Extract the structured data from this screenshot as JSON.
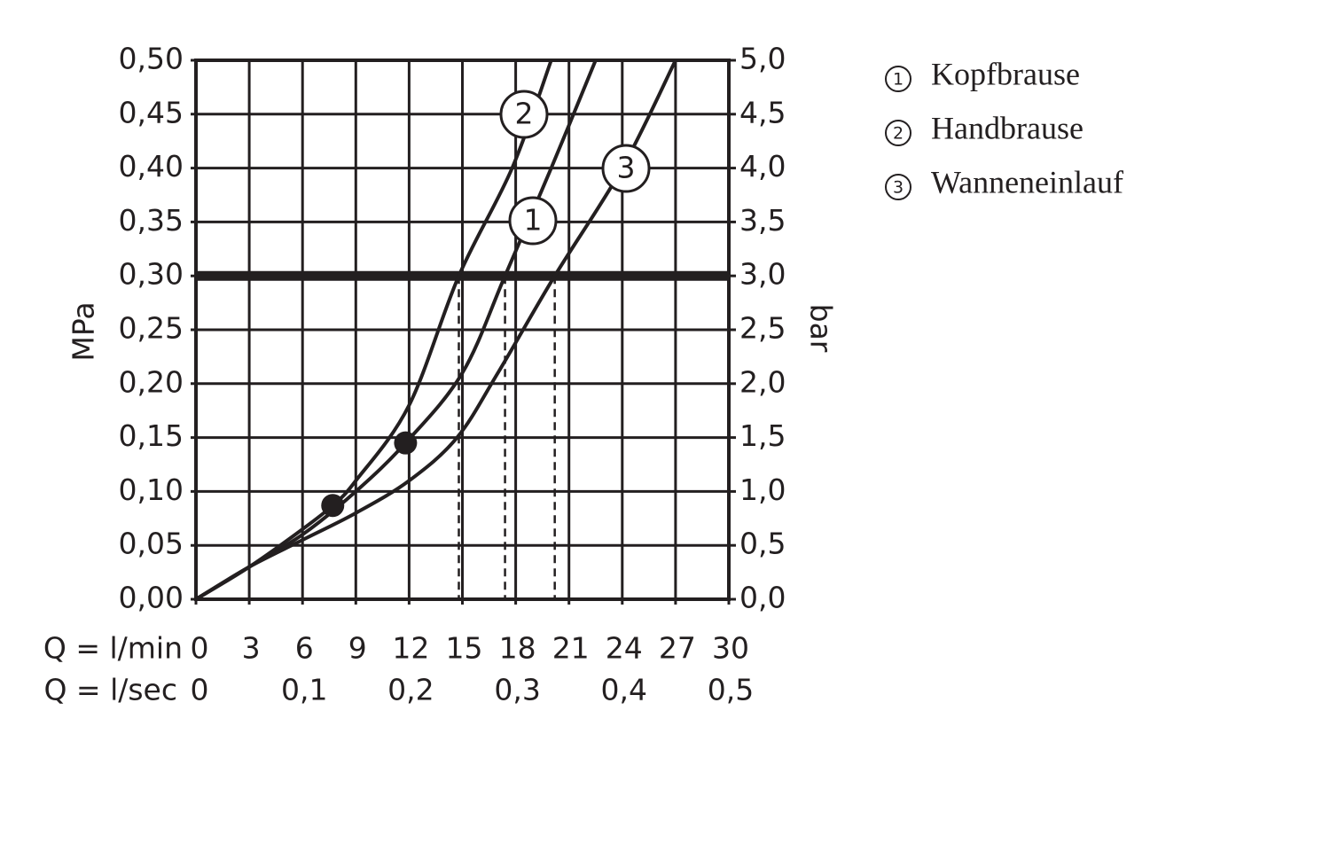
{
  "chart_data": {
    "type": "line",
    "ylabel": "MPa",
    "y2label": "bar",
    "xlabel": "Q = l/min",
    "x2label": "Q = l/sec",
    "xlim": [
      0,
      30
    ],
    "xticks": [
      0,
      3,
      6,
      9,
      12,
      15,
      18,
      21,
      24,
      27,
      30
    ],
    "x2lim": [
      0,
      0.5
    ],
    "x2ticks": [
      0,
      {
        "value": 0.1,
        "label": "0,1"
      },
      {
        "value": 0.2,
        "label": "0,2"
      },
      {
        "value": 0.3,
        "label": "0,3"
      },
      {
        "value": 0.4,
        "label": "0,4"
      },
      {
        "value": 0.5,
        "label": "0,5"
      }
    ],
    "ylim": [
      0,
      0.5
    ],
    "yticks": [
      {
        "value": 0,
        "label": "0,00"
      },
      {
        "value": 0.05,
        "label": "0,05"
      },
      {
        "value": 0.1,
        "label": "0,10"
      },
      {
        "value": 0.15,
        "label": "0,15"
      },
      {
        "value": 0.2,
        "label": "0,20"
      },
      {
        "value": 0.25,
        "label": "0,25"
      },
      {
        "value": 0.3,
        "label": "0,30"
      },
      {
        "value": 0.35,
        "label": "0,35"
      },
      {
        "value": 0.4,
        "label": "0,40"
      },
      {
        "value": 0.45,
        "label": "0,45"
      },
      {
        "value": 0.5,
        "label": "0,50"
      }
    ],
    "y2lim": [
      0,
      5
    ],
    "y2ticks": [
      {
        "value": 0,
        "label": "0,0"
      },
      {
        "value": 0.5,
        "label": "0,5"
      },
      {
        "value": 1,
        "label": "1,0"
      },
      {
        "value": 1.5,
        "label": "1,5"
      },
      {
        "value": 2,
        "label": "2,0"
      },
      {
        "value": 2.5,
        "label": "2,5"
      },
      {
        "value": 3,
        "label": "3,0"
      },
      {
        "value": 3.5,
        "label": "3,5"
      },
      {
        "value": 4,
        "label": "4,0"
      },
      {
        "value": 4.5,
        "label": "4,5"
      },
      {
        "value": 5,
        "label": "5,0"
      }
    ],
    "grid": true,
    "reference_y": 0.3,
    "drop_lines_x": [
      14.8,
      17.4,
      20.2
    ],
    "points": {
      "x": [
        7.7,
        11.8
      ],
      "y": [
        0.087,
        0.145
      ]
    },
    "series": [
      {
        "label": "1",
        "name": "Kopfbrause",
        "color": "#231f20",
        "x": [
          0,
          3,
          6,
          9,
          11.8,
          15,
          17.4,
          20,
          22.5
        ],
        "y": [
          0,
          0.03,
          0.06,
          0.1,
          0.145,
          0.21,
          0.3,
          0.4,
          0.5
        ]
      },
      {
        "label": "2",
        "name": "Handbrause",
        "color": "#231f20",
        "x": [
          0,
          3,
          6,
          7.7,
          9,
          12,
          14.8,
          17.8,
          20
        ],
        "y": [
          0,
          0.03,
          0.065,
          0.087,
          0.11,
          0.18,
          0.3,
          0.4,
          0.5
        ]
      },
      {
        "label": "3",
        "name": "Wanneneinlauf",
        "color": "#231f20",
        "x": [
          0,
          3,
          6,
          9,
          12,
          14.7,
          17,
          20.2,
          24,
          27
        ],
        "y": [
          0,
          0.03,
          0.055,
          0.08,
          0.11,
          0.15,
          0.21,
          0.3,
          0.4,
          0.5
        ]
      }
    ]
  }
}
